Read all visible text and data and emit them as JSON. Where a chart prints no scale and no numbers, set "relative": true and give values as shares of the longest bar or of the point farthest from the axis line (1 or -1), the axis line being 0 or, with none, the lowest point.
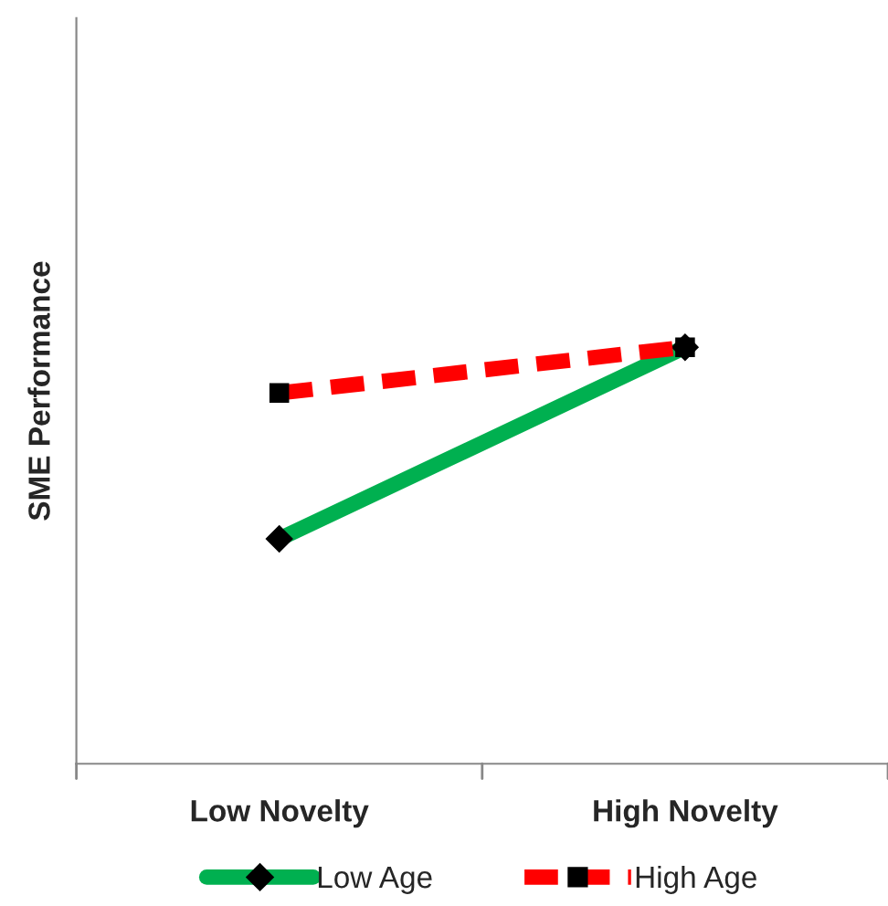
{
  "chart_data": {
    "type": "line",
    "relative": true,
    "ylabel": "SME Performance",
    "categories": [
      "Low Novelty",
      "High Novelty"
    ],
    "series": [
      {
        "name": "Low Age",
        "color": "#00b050",
        "values": [
          0.54,
          1
        ],
        "marker": "diamond",
        "line_style": "solid"
      },
      {
        "name": "High Age",
        "color": "#ff0000",
        "values": [
          0.89,
          1
        ],
        "marker": "square",
        "line_style": "dashed"
      }
    ],
    "legend": "bottom",
    "grid": false
  }
}
